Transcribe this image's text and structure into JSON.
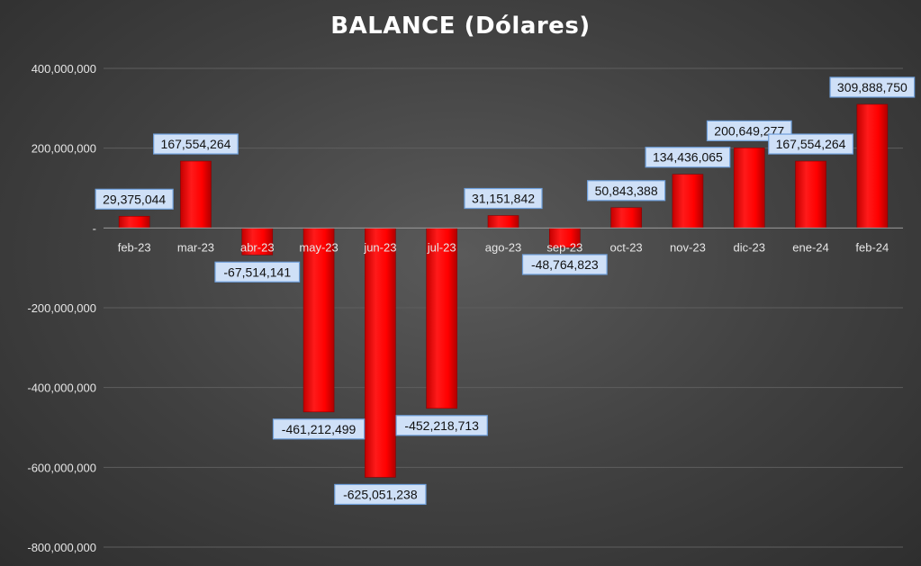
{
  "chart_data": {
    "type": "bar",
    "title": "BALANCE (Dólares)",
    "xlabel": "",
    "ylabel": "",
    "categories": [
      "feb-23",
      "mar-23",
      "abr-23",
      "may-23",
      "jun-23",
      "jul-23",
      "ago-23",
      "sep-23",
      "oct-23",
      "nov-23",
      "dic-23",
      "ene-24",
      "feb-24"
    ],
    "values": [
      29375044,
      167554264,
      -67514141,
      -461212499,
      -625051238,
      -452218713,
      31151842,
      -48764823,
      50843388,
      134436065,
      200649277,
      167554264,
      309888750
    ],
    "data_labels": [
      "29,375,044",
      "167,554,264",
      "-67,514,141",
      "-461,212,499",
      "-625,051,238",
      "-452,218,713",
      "31,151,842",
      "-48,764,823",
      "50,843,388",
      "134,436,065",
      "200,649,277",
      "167,554,264",
      "309,888,750"
    ],
    "ylim": [
      -800000000,
      400000000
    ],
    "yticks": [
      400000000,
      200000000,
      0,
      -200000000,
      -400000000,
      -600000000,
      -800000000
    ],
    "ytick_labels": [
      "400,000,000",
      "200,000,000",
      "-",
      "-200,000,000",
      "-400,000,000",
      "-600,000,000",
      "-800,000,000"
    ],
    "grid": true,
    "legend": "none",
    "colors": {
      "bar": "#ff0000",
      "bar_dark": "#b00000",
      "label_fill": "#cfe0f7",
      "label_border": "#6fa0dc",
      "gridline": "#5e5e5e",
      "axis": "#9a9a9a"
    }
  }
}
